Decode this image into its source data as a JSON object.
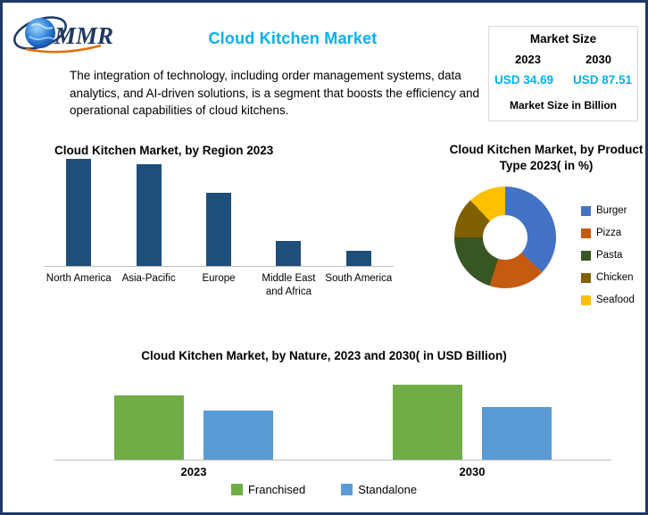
{
  "header": {
    "logo_text": "MMR",
    "title": "Cloud Kitchen Market",
    "market_size": {
      "heading": "Market Size",
      "years": [
        "2023",
        "2030"
      ],
      "values": [
        "USD 34.69",
        "USD 87.51"
      ],
      "note": "Market Size in Billion"
    },
    "description": "The integration of technology, including order management systems, data analytics, and AI-driven solutions, is a segment that boosts the efficiency and operational capabilities of cloud kitchens."
  },
  "colors": {
    "accent_cyan": "#00B0F0",
    "border_navy": "#1F3864",
    "axis_gray": "#bfbfbf"
  },
  "chart_data": [
    {
      "type": "bar",
      "title": "Cloud Kitchen Market, by Region 2023",
      "categories": [
        "North America",
        "Asia-Pacific",
        "Europe",
        "Middle East and Africa",
        "South America"
      ],
      "values": [
        100,
        95,
        68,
        23,
        14
      ],
      "bar_color": "#1F4E79",
      "xlabel": "",
      "ylabel": "",
      "value_axis_shown": false,
      "grid": false
    },
    {
      "type": "pie",
      "donut": true,
      "title": "Cloud Kitchen Market, by Product Type 2023( in %)",
      "categories": [
        "Burger",
        "Pizza",
        "Pasta",
        "Chicken",
        "Seafood"
      ],
      "values": [
        37,
        18,
        20,
        13,
        12
      ],
      "colors": [
        "#4472C4",
        "#C55A11",
        "#375623",
        "#7F6000",
        "#FFC000"
      ],
      "legend_position": "right"
    },
    {
      "type": "bar",
      "title": "Cloud Kitchen Market, by Nature, 2023 and 2030( in USD Billion)",
      "categories": [
        "2023",
        "2030"
      ],
      "series": [
        {
          "name": "Franchised",
          "values": [
            65,
            76
          ],
          "color": "#70AD47"
        },
        {
          "name": "Standalone",
          "values": [
            50,
            53
          ],
          "color": "#5B9BD5"
        }
      ],
      "value_axis_shown": false,
      "grid": false,
      "legend_position": "bottom"
    }
  ]
}
